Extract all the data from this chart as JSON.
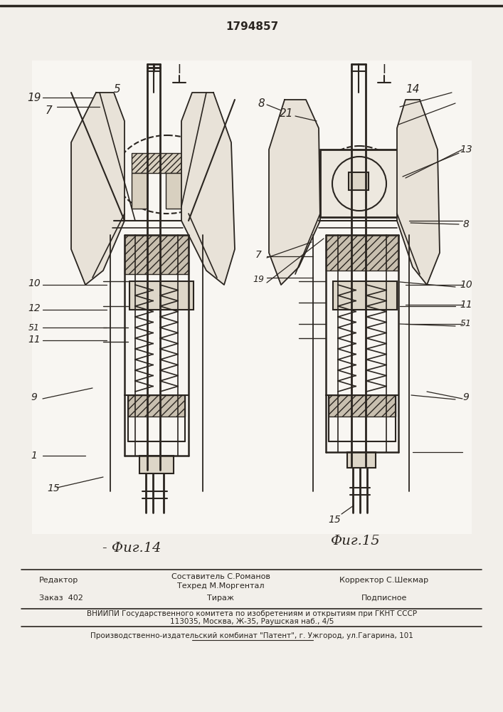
{
  "patent_number": "1794857",
  "bg_color": "#f2efea",
  "paper_color": "#f5f2ed",
  "line_color": "#2a2520",
  "fig14_caption": "- Фиг.14",
  "fig15_caption": "Фиг.15",
  "footer_editor": "Редактор",
  "footer_compiler": "Составитель С.Романов",
  "footer_techred": "Техред М.Моргентал",
  "footer_corrector": "Корректор С.Шекмар",
  "footer_order": "Заказ  402",
  "footer_tirazh": "Тираж",
  "footer_podpisnoe": "Подписное",
  "footer_vniipи": "ВНИИПИ Государственного комитета по изобретениям и открытиям при ГКНТ СССР",
  "footer_addr": "113035, Москва, Ж-35, Раушская наб., 4/5",
  "footer_patent": "Производственно-издательский комбинат \"Патент\", г. Ужгород, ул.Гагарина, 101"
}
